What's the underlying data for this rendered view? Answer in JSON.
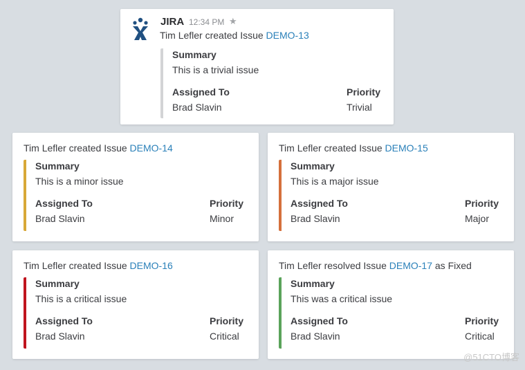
{
  "app": {
    "name": "JIRA",
    "timestamp": "12:34 PM"
  },
  "colors": {
    "link": "#2a80b9",
    "trivial": "#d3d4d6",
    "minor": "#d8a838",
    "major": "#d5703c",
    "critical": "#c0141e",
    "fixed": "#5aa35a"
  },
  "labels": {
    "summary": "Summary",
    "assigned_to": "Assigned To",
    "priority": "Priority"
  },
  "cards": [
    {
      "actor_text": "Tim Lefler created Issue ",
      "issue": "DEMO-13",
      "suffix": "",
      "summary": "This is a trivial issue",
      "assignee": "Brad Slavin",
      "priority": "Trivial"
    },
    {
      "actor_text": "Tim Lefler created Issue ",
      "issue": "DEMO-14",
      "suffix": "",
      "summary": "This is a minor issue",
      "assignee": "Brad Slavin",
      "priority": "Minor"
    },
    {
      "actor_text": "Tim Lefler created Issue ",
      "issue": "DEMO-15",
      "suffix": "",
      "summary": "This is a major issue",
      "assignee": "Brad Slavin",
      "priority": "Major"
    },
    {
      "actor_text": "Tim Lefler created Issue ",
      "issue": "DEMO-16",
      "suffix": "",
      "summary": "This is a critical issue",
      "assignee": "Brad Slavin",
      "priority": "Critical"
    },
    {
      "actor_text": "Tim Lefler resolved Issue ",
      "issue": "DEMO-17",
      "suffix": " as Fixed",
      "summary": "This was a critical issue",
      "assignee": "Brad Slavin",
      "priority": "Critical"
    }
  ],
  "watermark": "@51CTO博客"
}
